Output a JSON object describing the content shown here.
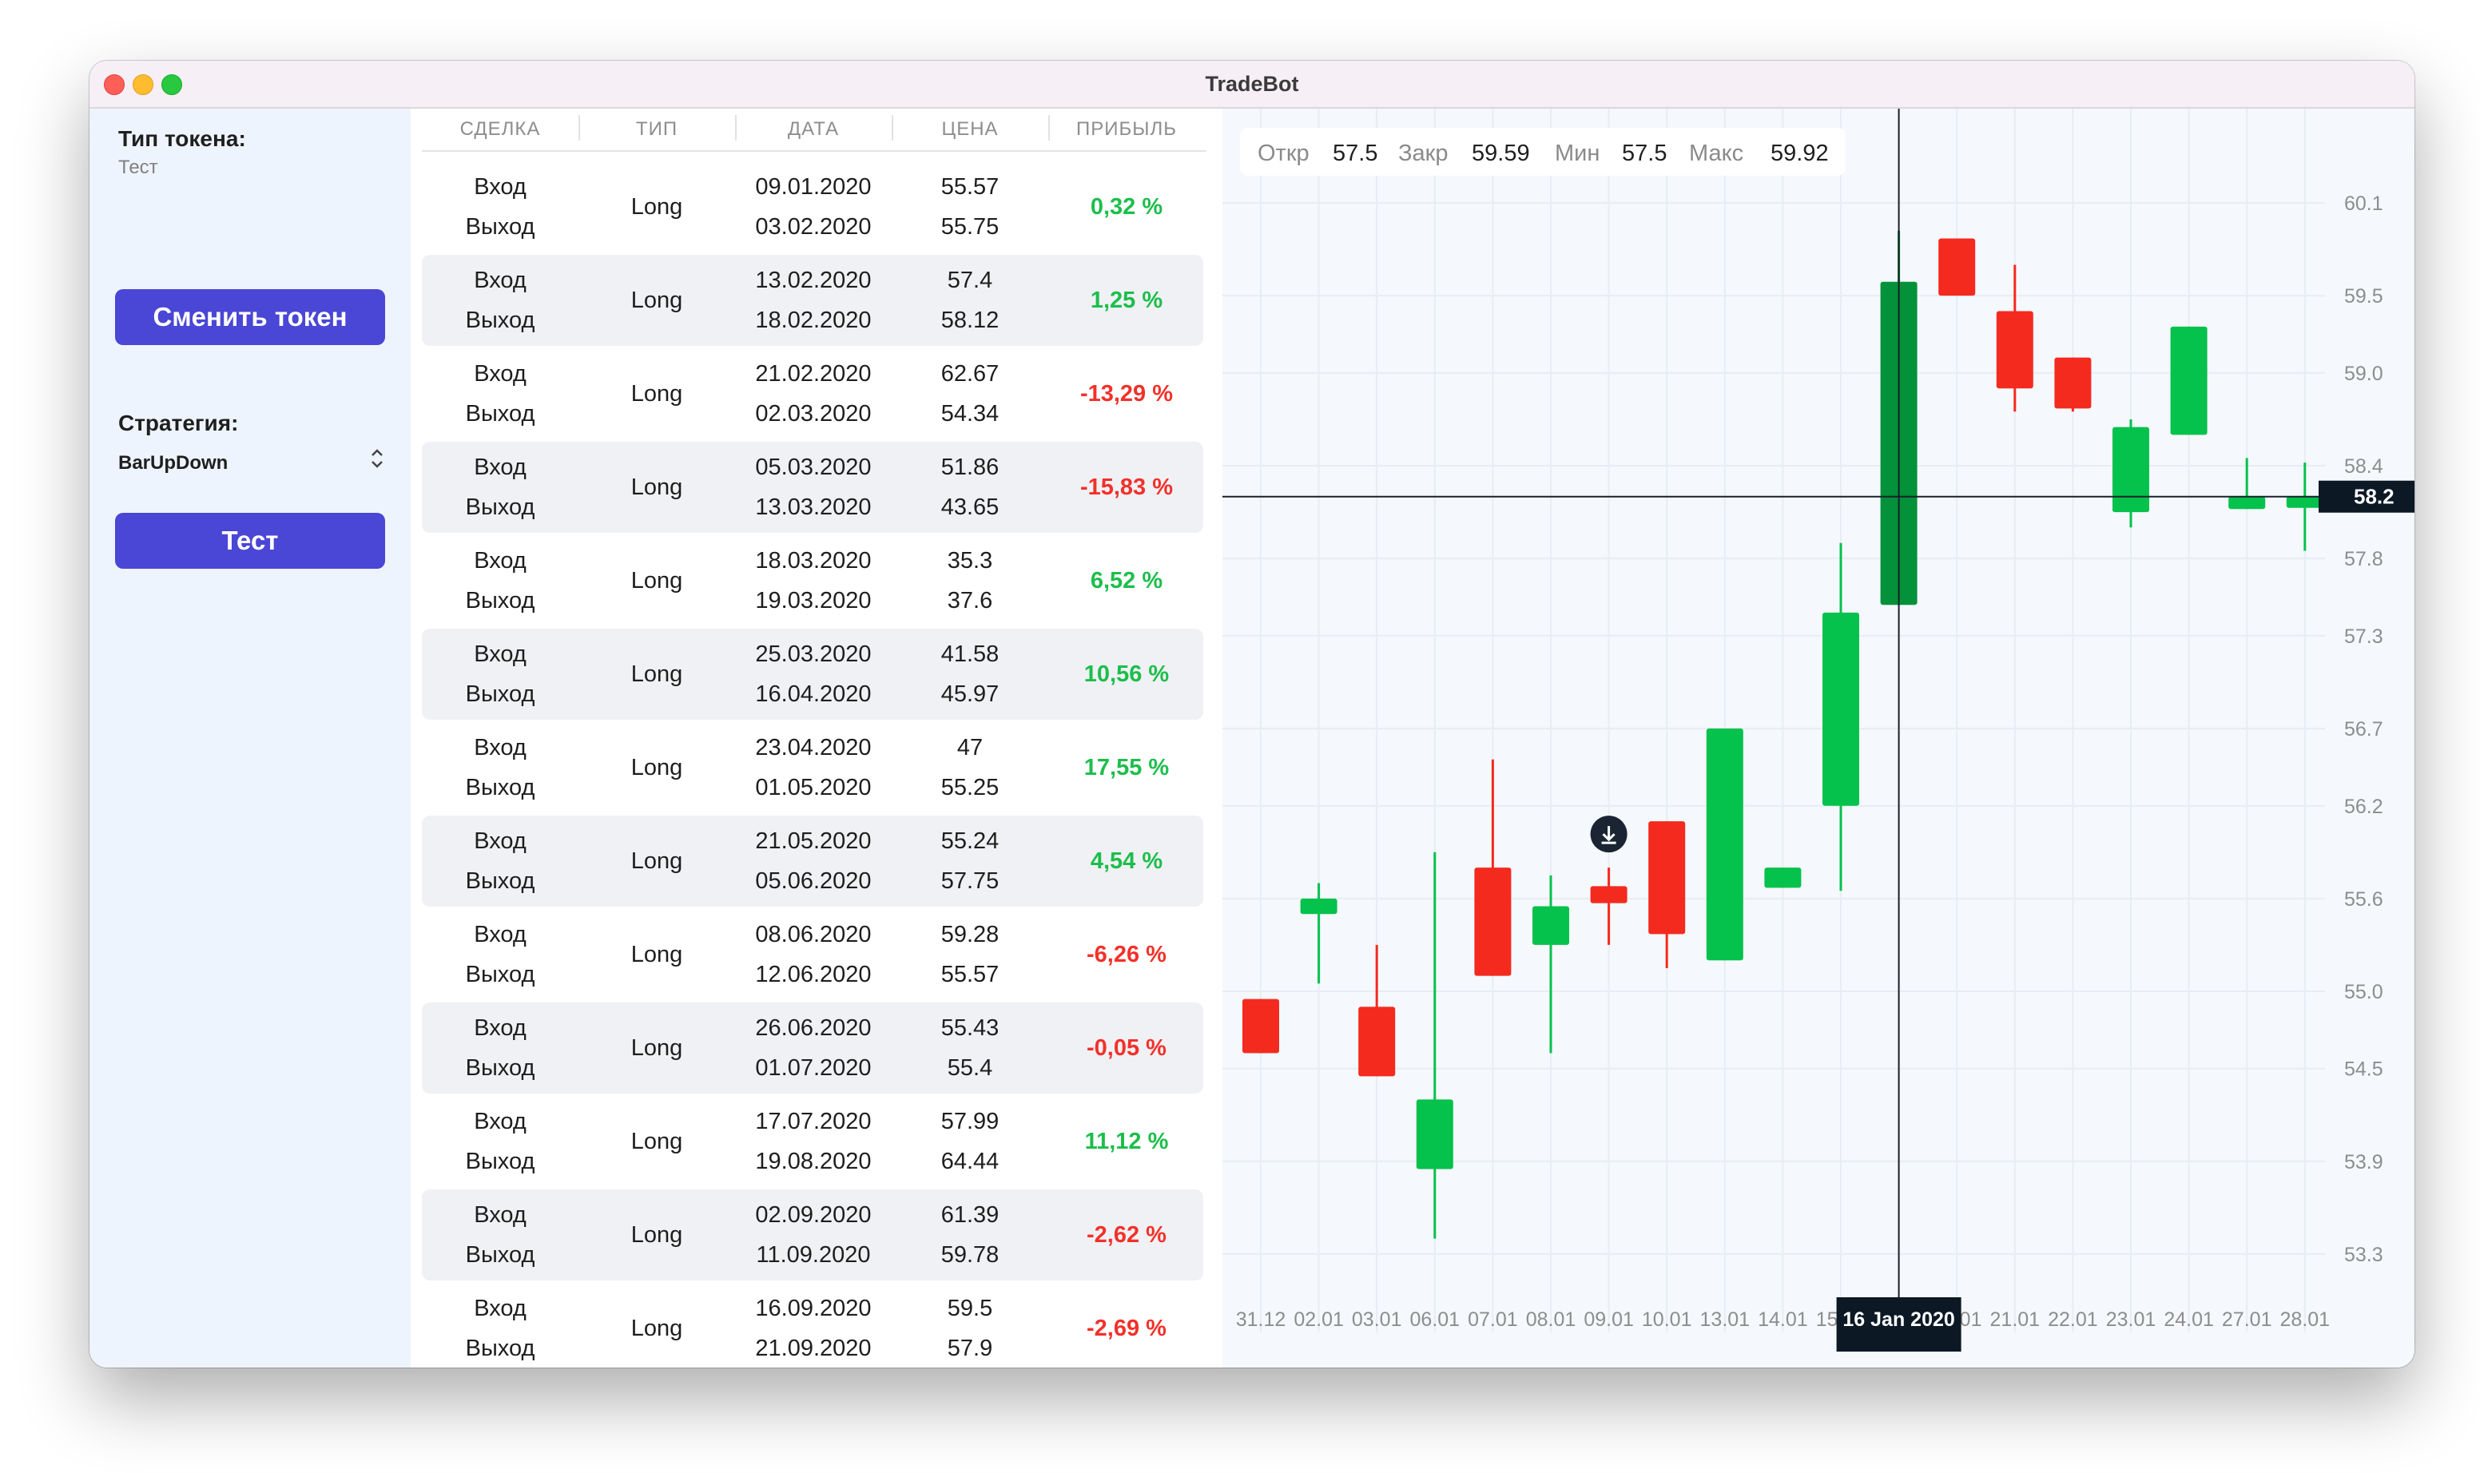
{
  "window": {
    "title": "TradeBot"
  },
  "sidebar": {
    "token_label": "Тип токена:",
    "token_value": "Тест",
    "change_token_button": "Сменить токен",
    "strategy_label": "Стратегия:",
    "strategy_value": "BarUpDown",
    "test_button": "Тест"
  },
  "table": {
    "headers": [
      "СДЕЛКА",
      "ТИП",
      "ДАТА",
      "ЦЕНА",
      "ПРИБЫЛЬ"
    ],
    "rows": [
      {
        "entry": "Вход",
        "exit": "Выход",
        "type": "Long",
        "entry_date": "09.01.2020",
        "exit_date": "03.02.2020",
        "entry_price": "55.57",
        "exit_price": "55.75",
        "profit": "0,32 %",
        "profit_sign": "pos"
      },
      {
        "entry": "Вход",
        "exit": "Выход",
        "type": "Long",
        "entry_date": "13.02.2020",
        "exit_date": "18.02.2020",
        "entry_price": "57.4",
        "exit_price": "58.12",
        "profit": "1,25 %",
        "profit_sign": "pos"
      },
      {
        "entry": "Вход",
        "exit": "Выход",
        "type": "Long",
        "entry_date": "21.02.2020",
        "exit_date": "02.03.2020",
        "entry_price": "62.67",
        "exit_price": "54.34",
        "profit": "-13,29 %",
        "profit_sign": "neg"
      },
      {
        "entry": "Вход",
        "exit": "Выход",
        "type": "Long",
        "entry_date": "05.03.2020",
        "exit_date": "13.03.2020",
        "entry_price": "51.86",
        "exit_price": "43.65",
        "profit": "-15,83 %",
        "profit_sign": "neg"
      },
      {
        "entry": "Вход",
        "exit": "Выход",
        "type": "Long",
        "entry_date": "18.03.2020",
        "exit_date": "19.03.2020",
        "entry_price": "35.3",
        "exit_price": "37.6",
        "profit": "6,52 %",
        "profit_sign": "pos"
      },
      {
        "entry": "Вход",
        "exit": "Выход",
        "type": "Long",
        "entry_date": "25.03.2020",
        "exit_date": "16.04.2020",
        "entry_price": "41.58",
        "exit_price": "45.97",
        "profit": "10,56 %",
        "profit_sign": "pos"
      },
      {
        "entry": "Вход",
        "exit": "Выход",
        "type": "Long",
        "entry_date": "23.04.2020",
        "exit_date": "01.05.2020",
        "entry_price": "47",
        "exit_price": "55.25",
        "profit": "17,55 %",
        "profit_sign": "pos"
      },
      {
        "entry": "Вход",
        "exit": "Выход",
        "type": "Long",
        "entry_date": "21.05.2020",
        "exit_date": "05.06.2020",
        "entry_price": "55.24",
        "exit_price": "57.75",
        "profit": "4,54 %",
        "profit_sign": "pos"
      },
      {
        "entry": "Вход",
        "exit": "Выход",
        "type": "Long",
        "entry_date": "08.06.2020",
        "exit_date": "12.06.2020",
        "entry_price": "59.28",
        "exit_price": "55.57",
        "profit": "-6,26 %",
        "profit_sign": "neg"
      },
      {
        "entry": "Вход",
        "exit": "Выход",
        "type": "Long",
        "entry_date": "26.06.2020",
        "exit_date": "01.07.2020",
        "entry_price": "55.43",
        "exit_price": "55.4",
        "profit": "-0,05 %",
        "profit_sign": "neg"
      },
      {
        "entry": "Вход",
        "exit": "Выход",
        "type": "Long",
        "entry_date": "17.07.2020",
        "exit_date": "19.08.2020",
        "entry_price": "57.99",
        "exit_price": "64.44",
        "profit": "11,12 %",
        "profit_sign": "pos"
      },
      {
        "entry": "Вход",
        "exit": "Выход",
        "type": "Long",
        "entry_date": "02.09.2020",
        "exit_date": "11.09.2020",
        "entry_price": "61.39",
        "exit_price": "59.78",
        "profit": "-2,62 %",
        "profit_sign": "neg"
      },
      {
        "entry": "Вход",
        "exit": "Выход",
        "type": "Long",
        "entry_date": "16.09.2020",
        "exit_date": "21.09.2020",
        "entry_price": "59.5",
        "exit_price": "57.9",
        "profit": "-2,69 %",
        "profit_sign": "neg"
      }
    ]
  },
  "ohlc": {
    "open_label": "Откр",
    "open_value": "57.5",
    "close_label": "Закр",
    "close_value": "59.59",
    "low_label": "Мин",
    "low_value": "57.5",
    "high_label": "Макс",
    "high_value": "59.92"
  },
  "colors": {
    "accent": "#4a46d6",
    "up": "#05c24c",
    "down": "#f42a1f",
    "up_active": "#039139",
    "crosshair_label_bg": "#0c1824",
    "positive_text": "#1cbe4b",
    "negative_text": "#f2312a"
  },
  "chart_data": {
    "type": "candlestick",
    "y_ticks": [
      "60.1",
      "59.5",
      "59.0",
      "58.4",
      "57.8",
      "57.3",
      "56.7",
      "56.2",
      "55.6",
      "55.0",
      "54.5",
      "53.9",
      "53.3"
    ],
    "x_ticks": [
      "31.12",
      "02.01",
      "03.01",
      "06.01",
      "07.01",
      "08.01",
      "09.01",
      "10.01",
      "13.01",
      "14.01",
      "15.01",
      "16.01",
      "17.01",
      "21.01",
      "22.01",
      "23.01",
      "24.01",
      "27.01",
      "28.01"
    ],
    "candles": [
      {
        "date": "31.12",
        "open": 54.95,
        "high": 54.95,
        "low": 54.6,
        "close": 54.6
      },
      {
        "date": "02.01",
        "open": 55.5,
        "high": 55.7,
        "low": 55.05,
        "close": 55.6
      },
      {
        "date": "03.01",
        "open": 54.9,
        "high": 55.3,
        "low": 54.45,
        "close": 54.45
      },
      {
        "date": "06.01",
        "open": 53.85,
        "high": 55.9,
        "low": 53.4,
        "close": 54.3
      },
      {
        "date": "07.01",
        "open": 55.8,
        "high": 56.5,
        "low": 55.1,
        "close": 55.1
      },
      {
        "date": "08.01",
        "open": 55.3,
        "high": 55.75,
        "low": 54.6,
        "close": 55.55
      },
      {
        "date": "09.01",
        "open": 55.68,
        "high": 55.8,
        "low": 55.3,
        "close": 55.57
      },
      {
        "date": "10.01",
        "open": 56.1,
        "high": 56.1,
        "low": 55.15,
        "close": 55.37
      },
      {
        "date": "13.01",
        "open": 55.2,
        "high": 56.7,
        "low": 55.2,
        "close": 56.7
      },
      {
        "date": "14.01",
        "open": 55.67,
        "high": 55.8,
        "low": 55.67,
        "close": 55.8
      },
      {
        "date": "15.01",
        "open": 56.2,
        "high": 57.9,
        "low": 55.65,
        "close": 57.45
      },
      {
        "date": "16.01",
        "open": 57.5,
        "high": 59.92,
        "low": 57.5,
        "close": 59.59
      },
      {
        "date": "17.01",
        "open": 59.87,
        "high": 59.87,
        "low": 59.5,
        "close": 59.5
      },
      {
        "date": "21.01",
        "open": 59.4,
        "high": 59.7,
        "low": 58.75,
        "close": 58.9
      },
      {
        "date": "22.01",
        "open": 59.1,
        "high": 59.1,
        "low": 58.75,
        "close": 58.77
      },
      {
        "date": "23.01",
        "open": 58.1,
        "high": 58.7,
        "low": 58.0,
        "close": 58.65
      },
      {
        "date": "24.01",
        "open": 58.6,
        "high": 59.3,
        "low": 58.6,
        "close": 59.3
      },
      {
        "date": "27.01",
        "open": 58.12,
        "high": 58.45,
        "low": 58.12,
        "close": 58.2
      },
      {
        "date": "28.01",
        "open": 58.15,
        "high": 58.42,
        "low": 57.85,
        "close": 58.2
      }
    ],
    "crosshair": {
      "x_label": "16 Jan 2020",
      "y_label": "58.2",
      "x_index": 11,
      "y_value": 58.2
    },
    "marker_index": 6,
    "ylim": [
      53.0,
      60.4
    ]
  }
}
